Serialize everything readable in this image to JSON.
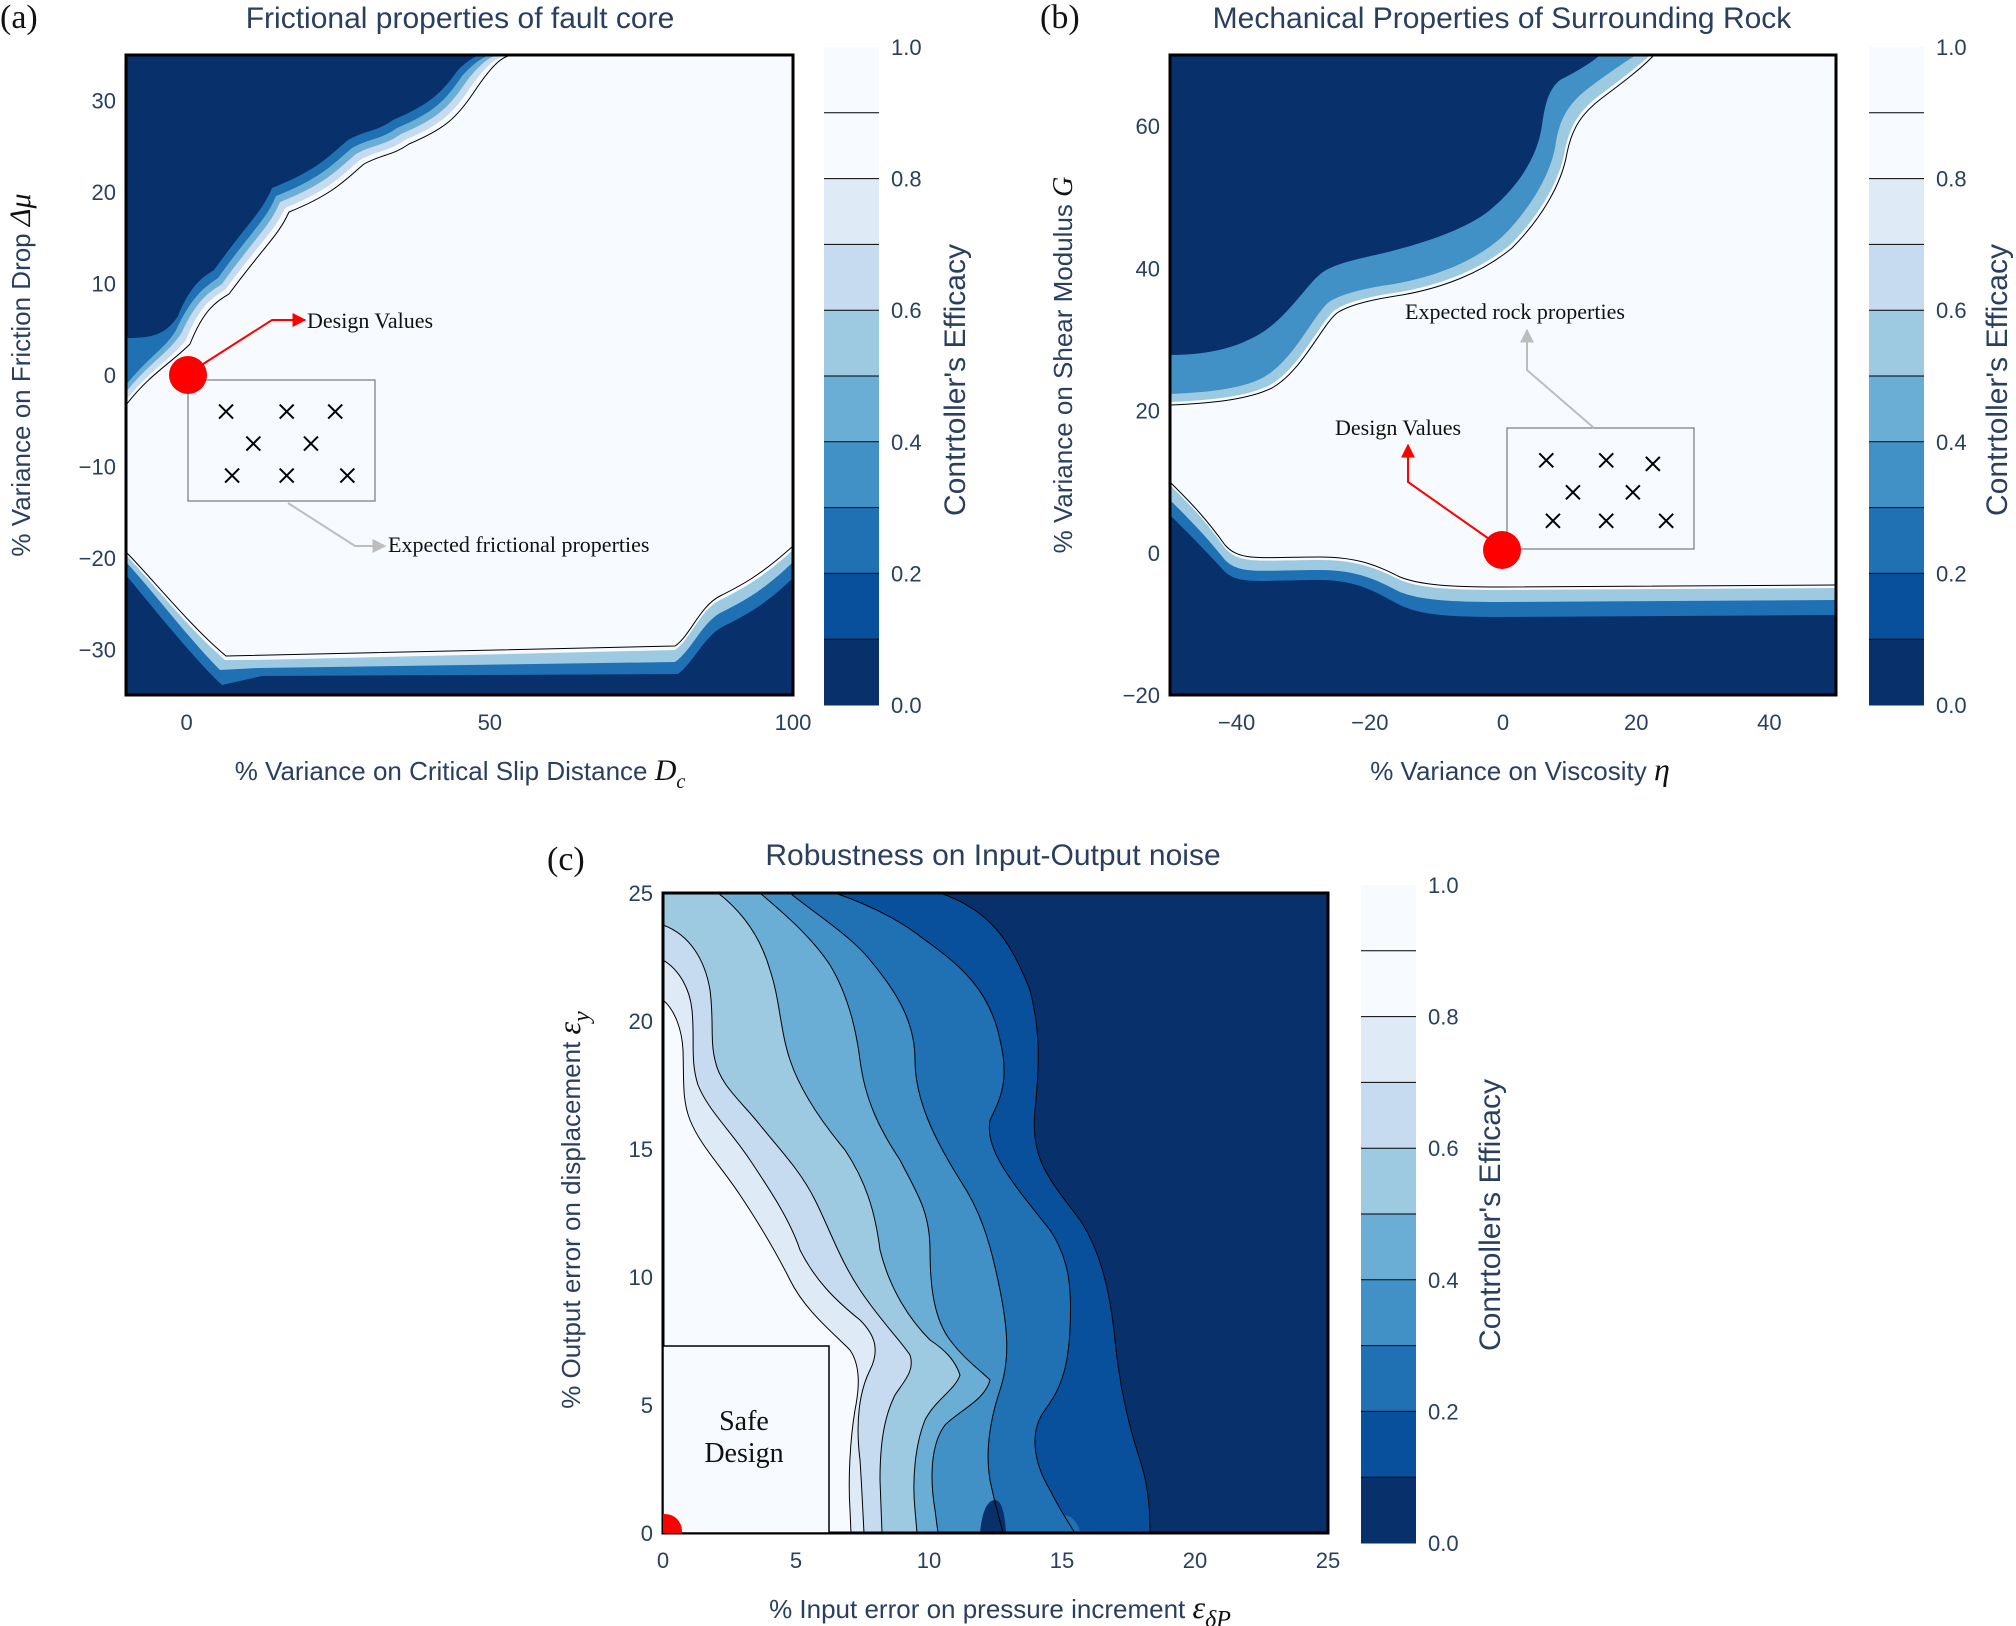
{
  "panels": [
    {
      "letter": "(a)",
      "title": "Frictional properties of fault core",
      "xlabel": "% Variance on Critical Slip Distance",
      "xlabel_sym": "D",
      "xlabel_sub": "c",
      "ylabel": "% Variance on Friction Drop",
      "ylabel_sym": "Δμ",
      "ylabel_sub": "",
      "colorbar_label": "Contrtoller's Efficacy",
      "annotations": {
        "design": "Design Values",
        "expected": "Expected frictional properties"
      }
    },
    {
      "letter": "(b)",
      "title": "Mechanical Properties of Surrounding Rock",
      "xlabel": "% Variance on Viscosity",
      "xlabel_sym": "η",
      "xlabel_sub": "",
      "ylabel": "% Variance on Shear Modulus",
      "ylabel_sym": "G",
      "ylabel_sub": "",
      "colorbar_label": "Contrtoller's Efficacy",
      "annotations": {
        "design": "Design Values",
        "expected": "Expected rock properties"
      }
    },
    {
      "letter": "(c)",
      "title": "Robustness on Input-Output noise",
      "xlabel": "% Input error on pressure increment",
      "xlabel_sym": "ε",
      "xlabel_sub": "δP",
      "ylabel": "% Output error on displacement",
      "ylabel_sym": "ε",
      "ylabel_sub": "y",
      "colorbar_label": "Contrtoller's Efficacy",
      "annotations": {
        "safe_line1": "Safe",
        "safe_line2": "Design"
      }
    }
  ],
  "colors": {
    "levels": [
      "#08306b",
      "#08509b",
      "#2070b4",
      "#4191c6",
      "#6aaed6",
      "#9dcae1",
      "#c6dbef",
      "#deebf7",
      "#f7fbff"
    ],
    "design_point": "#ff0000",
    "axis_text": "#2a3f5f"
  },
  "chart_data": [
    {
      "type": "contour",
      "title": "Frictional properties of fault core",
      "xlim": [
        -10,
        100
      ],
      "ylim": [
        -35,
        35
      ],
      "xticks": [
        0,
        50,
        100
      ],
      "yticks": [
        -30,
        -20,
        -10,
        0,
        10,
        20,
        30
      ],
      "colorbar": {
        "range": [
          0,
          1
        ],
        "ticks": [
          0.0,
          0.2,
          0.4,
          0.6,
          0.8,
          1.0
        ],
        "levels": 10
      },
      "design_point": {
        "x": 0,
        "y": 0
      },
      "expected_samples": [
        {
          "x": 6.5,
          "y": -4
        },
        {
          "x": 16.5,
          "y": -4
        },
        {
          "x": 24.5,
          "y": -4
        },
        {
          "x": 11,
          "y": -7.5
        },
        {
          "x": 20.5,
          "y": -7.5
        },
        {
          "x": 7.5,
          "y": -11
        },
        {
          "x": 16.5,
          "y": -11
        },
        {
          "x": 26.5,
          "y": -11
        }
      ]
    },
    {
      "type": "contour",
      "title": "Mechanical Properties of Surrounding Rock",
      "xlim": [
        -50,
        50
      ],
      "ylim": [
        -20,
        70
      ],
      "xticks": [
        -40,
        -20,
        0,
        20,
        40
      ],
      "yticks": [
        -20,
        0,
        20,
        40,
        60
      ],
      "colorbar": {
        "range": [
          0,
          1
        ],
        "ticks": [
          0.0,
          0.2,
          0.4,
          0.6,
          0.8,
          1.0
        ],
        "levels": 10
      },
      "design_point": {
        "x": 0,
        "y": 0
      },
      "expected_samples": [
        {
          "x": 6.5,
          "y": 13
        },
        {
          "x": 15.5,
          "y": 13
        },
        {
          "x": 22.5,
          "y": 12.5
        },
        {
          "x": 10.5,
          "y": 8.5
        },
        {
          "x": 19.5,
          "y": 8.5
        },
        {
          "x": 7.5,
          "y": 4.5
        },
        {
          "x": 15.5,
          "y": 4.5
        },
        {
          "x": 24.5,
          "y": 4.5
        }
      ]
    },
    {
      "type": "contour",
      "title": "Robustness on Input-Output noise",
      "xlim": [
        0,
        25
      ],
      "ylim": [
        0,
        25
      ],
      "xticks": [
        0,
        5,
        10,
        15,
        20,
        25
      ],
      "yticks": [
        0,
        5,
        10,
        15,
        20,
        25
      ],
      "colorbar": {
        "range": [
          0,
          1
        ],
        "ticks": [
          0.0,
          0.2,
          0.4,
          0.6,
          0.8,
          1.0
        ],
        "levels": 10
      },
      "design_point": {
        "x": 0,
        "y": 0
      },
      "safe_region": {
        "x": [
          0,
          6.3
        ],
        "y": [
          0,
          7.3
        ]
      }
    }
  ]
}
